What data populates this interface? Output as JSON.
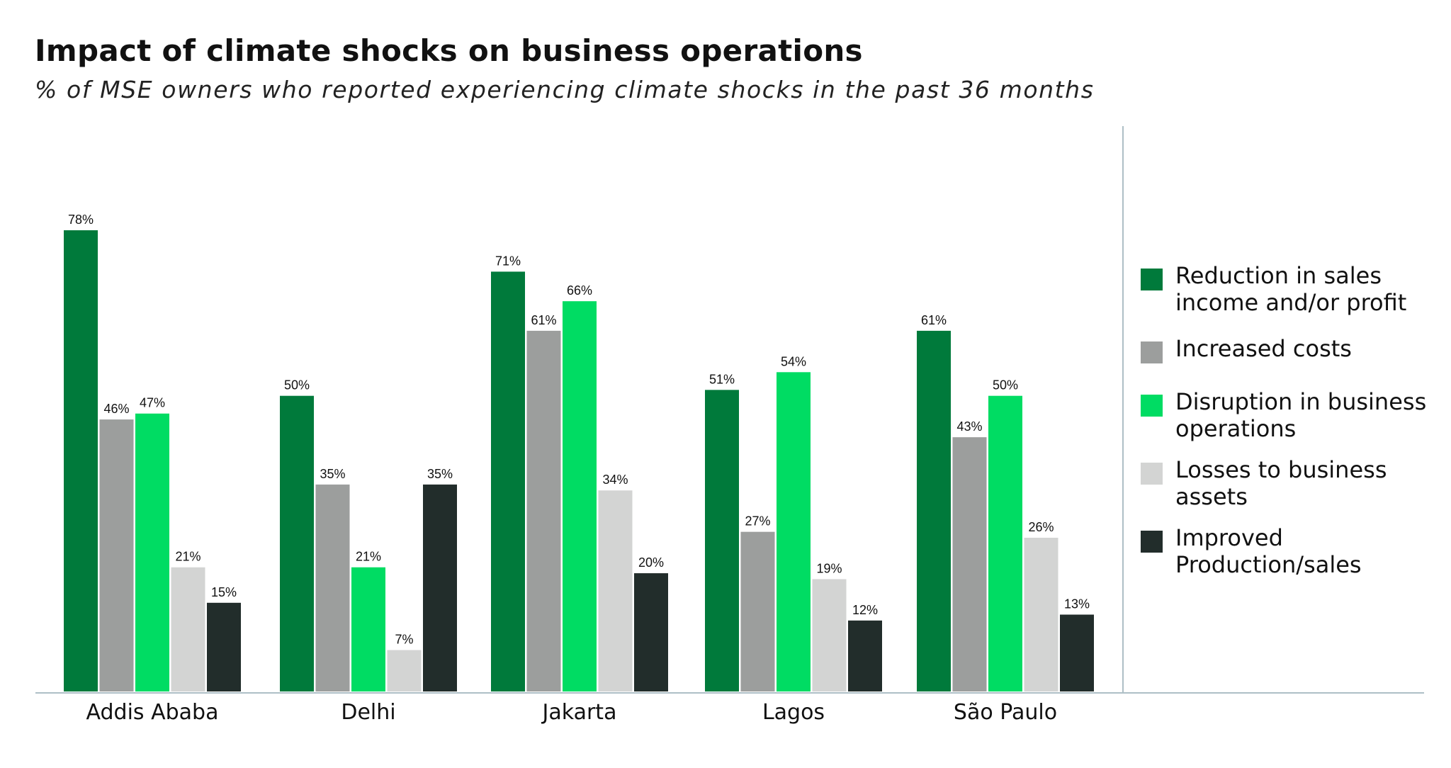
{
  "chart_data": {
    "type": "bar",
    "title": "Impact of climate shocks on business operations",
    "subtitle": "% of MSE owners who reported experiencing climate shocks in the past 36 months",
    "categories": [
      "Addis Ababa",
      "Delhi",
      "Jakarta",
      "Lagos",
      "São Paulo"
    ],
    "series": [
      {
        "name": "Reduction in sales income and/or profit",
        "color": "#007a3b",
        "values": [
          78,
          50,
          71,
          51,
          61
        ]
      },
      {
        "name": "Increased costs",
        "color": "#9c9e9d",
        "values": [
          46,
          35,
          61,
          27,
          43
        ]
      },
      {
        "name": "Disruption in business operations",
        "color": "#00dc63",
        "values": [
          47,
          21,
          66,
          54,
          50
        ]
      },
      {
        "name": "Losses to business assets",
        "color": "#d3d4d3",
        "values": [
          21,
          7,
          34,
          19,
          26
        ]
      },
      {
        "name": "Improved Production/sales",
        "color": "#222d2b",
        "values": [
          15,
          35,
          20,
          12,
          13
        ]
      }
    ],
    "value_suffix": "%",
    "ylim": [
      0,
      80
    ],
    "legend_position": "right",
    "grid": false
  }
}
